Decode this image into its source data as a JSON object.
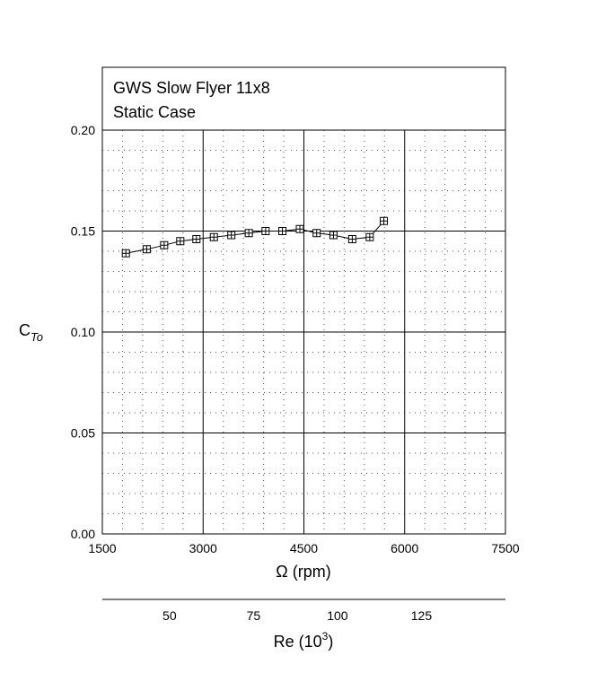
{
  "chart_data": {
    "type": "line",
    "title_lines": [
      "GWS Slow Flyer 11x8",
      "Static Case"
    ],
    "xlabel": "Ω (rpm)",
    "ylabel_main": "C",
    "ylabel_sub": "To",
    "xlim": [
      1500,
      7500
    ],
    "ylim": [
      0,
      0.2
    ],
    "x_ticks": [
      1500,
      3000,
      4500,
      6000,
      7500
    ],
    "x_tick_labels": [
      "1500",
      "3000",
      "4500",
      "6000",
      "7500"
    ],
    "y_ticks": [
      0,
      0.05,
      0.1,
      0.15,
      0.2
    ],
    "y_tick_labels": [
      "0.00",
      "0.05",
      "0.10",
      "0.15",
      "0.20"
    ],
    "grid": true,
    "marker": "boxed-plus",
    "series": [
      {
        "x": [
          1850,
          2160,
          2420,
          2660,
          2900,
          3160,
          3420,
          3680,
          3930,
          4180,
          4440,
          4690,
          4940,
          5220,
          5480,
          5690
        ],
        "y": [
          0.139,
          0.141,
          0.143,
          0.145,
          0.146,
          0.147,
          0.148,
          0.149,
          0.15,
          0.15,
          0.151,
          0.149,
          0.148,
          0.146,
          0.147,
          0.155
        ]
      }
    ],
    "secondary_x_axis": {
      "label_main": "Re (10",
      "label_sup": "3",
      "label_end": ")",
      "ticks": [
        50,
        75,
        100,
        125
      ],
      "tick_labels": [
        "50",
        "75",
        "100",
        "125"
      ],
      "xlim": [
        30,
        150
      ]
    }
  }
}
